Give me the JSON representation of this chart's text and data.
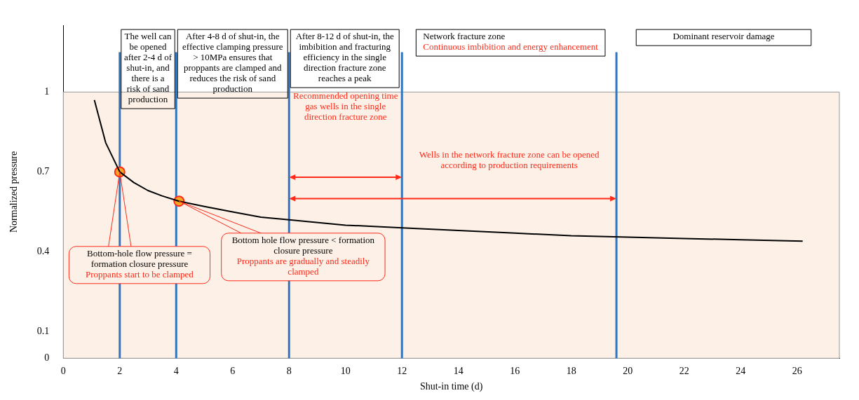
{
  "chart_data": {
    "type": "line",
    "xlabel": "Shut-in time (d)",
    "ylabel": "Normalized pressure",
    "xlim": [
      0,
      27.5
    ],
    "xticks": [
      0,
      2,
      4,
      6,
      8,
      10,
      12,
      14,
      16,
      18,
      20,
      22,
      24,
      26
    ],
    "ylim": [
      0,
      1.25
    ],
    "yticks": [
      0,
      0.1,
      0.4,
      0.7,
      1
    ],
    "grid": false,
    "legend": false,
    "series": [
      {
        "color": "#000000",
        "marker": "none",
        "x": [
          1.1,
          1.5,
          2,
          2.5,
          3,
          3.5,
          4.1,
          5,
          6,
          7,
          8,
          10,
          12,
          14,
          16,
          18,
          20,
          22,
          24,
          26.2
        ],
        "values": [
          0.97,
          0.81,
          0.7,
          0.66,
          0.63,
          0.61,
          0.59,
          0.57,
          0.55,
          0.53,
          0.52,
          0.5,
          0.49,
          0.48,
          0.47,
          0.46,
          0.455,
          0.45,
          0.445,
          0.44
        ]
      },
      {
        "type": "scatter",
        "color": "#f5a623",
        "marker": "circle",
        "x": [
          2,
          4.1
        ],
        "values": [
          0.7,
          0.59
        ]
      }
    ],
    "bands": [
      {
        "axis": "y",
        "from": 0,
        "to": 1,
        "color": "#fdf1e7"
      }
    ],
    "ref_lines": [
      {
        "axis": "x",
        "value": 2,
        "color": "#2f75c0"
      },
      {
        "axis": "x",
        "value": 4,
        "color": "#2f75c0"
      },
      {
        "axis": "x",
        "value": 8,
        "color": "#2f75c0"
      },
      {
        "axis": "x",
        "value": 12,
        "color": "#2f75c0"
      },
      {
        "axis": "x",
        "value": 19.6,
        "color": "#2f75c0"
      }
    ],
    "annotations": [
      "The well can be opened after 2-4 d of shut-in, and there is a risk of sand production",
      "After 4-8 d of shut-in, the effective clamping pressure > 10MPa ensures that proppants are clamped and reduces the risk of sand production",
      "After 8-12 d of shut-in, the imbibition and fracturing efficiency in the single direction fracture zone reaches a peak",
      "Network fracture zone",
      "Continuous imbibition and energy enhancement",
      "Dominant reservoir damage",
      "Recommended opening time gas wells in the single direction fracture zone",
      "Wells in the network fracture zone can be opened according to production requirements",
      {
        "text": "Bottom-hole flow pressure = formation closure pressure",
        "x": 2,
        "y": 0.7
      },
      "Proppants start to be clamped",
      {
        "text": "Bottom hole flow pressure < formation closure pressure",
        "x": 4.1,
        "y": 0.59
      },
      "Proppants are gradually and steadily clamped"
    ]
  }
}
